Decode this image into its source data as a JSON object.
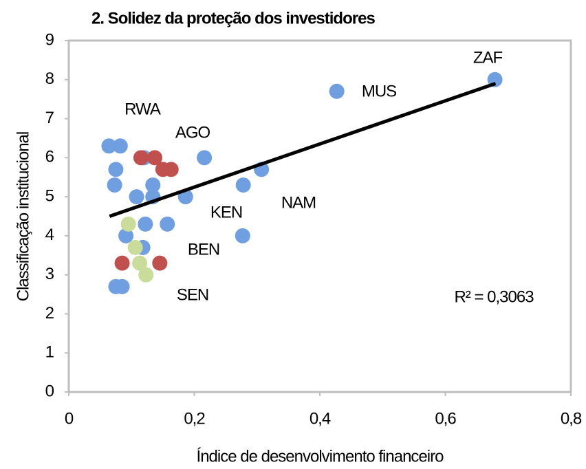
{
  "chart_data": {
    "type": "scatter",
    "title": "2.  Solidez da proteção dos investidores",
    "xlabel": "Índice de desenvolvimento financeiro",
    "ylabel": "Classificação institucional",
    "xlim": [
      0,
      0.8
    ],
    "xticks": [
      0,
      {
        "value": 0.2,
        "label": "0,2"
      },
      {
        "value": 0.4,
        "label": "0,4"
      },
      {
        "value": 0.6,
        "label": "0,6"
      },
      {
        "value": 0.8,
        "label": "0,8"
      }
    ],
    "ylim": [
      0,
      9
    ],
    "yticks": [
      0,
      1,
      2,
      3,
      4,
      5,
      6,
      7,
      8,
      9
    ],
    "series": [
      {
        "color": "#6f9fe0",
        "x": [
          0.064,
          0.082,
          0.075,
          0.073,
          0.108,
          0.091,
          0.118,
          0.122,
          0.134,
          0.134,
          0.157,
          0.186,
          0.216,
          0.278,
          0.277,
          0.307,
          0.427,
          0.679,
          0.075,
          0.085,
          0.12
        ],
        "y": [
          6.3,
          6.3,
          5.7,
          5.3,
          5.0,
          4.0,
          3.7,
          4.3,
          5.3,
          5.0,
          4.3,
          5.0,
          6.0,
          5.3,
          4.0,
          5.7,
          7.7,
          8.0,
          2.7,
          2.7,
          6.0
        ]
      },
      {
        "color": "#c0504d",
        "x": [
          0.115,
          0.137,
          0.15,
          0.163,
          0.085,
          0.145
        ],
        "y": [
          6.0,
          6.0,
          5.7,
          5.7,
          3.3,
          3.3
        ]
      },
      {
        "color": "#c9dc9a",
        "x": [
          0.095,
          0.106,
          0.113,
          0.123
        ],
        "y": [
          4.3,
          3.7,
          3.3,
          3.0
        ]
      }
    ],
    "trendline": {
      "color": "#000000",
      "x": [
        0.065,
        0.68
      ],
      "y": [
        4.5,
        7.9
      ]
    },
    "annotations": [
      "RWA",
      "AGO",
      "KEN",
      "NAM",
      "BEN",
      "SEN",
      "ZAF",
      "MUS",
      "R² = 0,3063"
    ]
  }
}
